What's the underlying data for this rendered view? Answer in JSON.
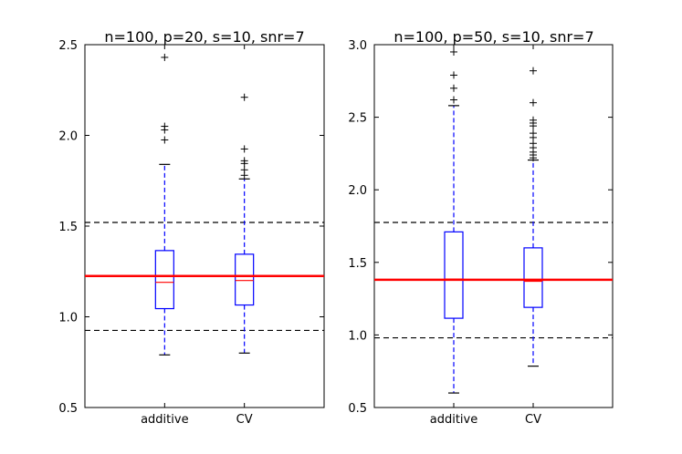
{
  "chart_data": [
    {
      "type": "box",
      "title": "n=100, p=20, s=10, snr=7",
      "xlabel": "",
      "ylabel": "",
      "categories": [
        "additive",
        "CV"
      ],
      "ylim": [
        0.5,
        2.5
      ],
      "yticks": [
        0.5,
        1.0,
        1.5,
        2.0,
        2.5
      ],
      "ytick_labels": [
        "0.5",
        "1.0",
        "1.5",
        "2.0",
        "2.5"
      ],
      "grid": false,
      "boxes": [
        {
          "name": "additive",
          "whisker_low": 0.79,
          "q1": 1.045,
          "median": 1.19,
          "q3": 1.365,
          "whisker_high": 1.84,
          "outliers": [
            1.975,
            2.03,
            2.05,
            2.43
          ]
        },
        {
          "name": "CV",
          "whisker_low": 0.8,
          "q1": 1.065,
          "median": 1.2,
          "q3": 1.345,
          "whisker_high": 1.76,
          "outliers": [
            1.78,
            1.81,
            1.845,
            1.86,
            1.925,
            2.21
          ]
        }
      ],
      "reference_line": 1.225,
      "band_lines": [
        0.925,
        1.52
      ]
    },
    {
      "type": "box",
      "title": "n=100, p=50, s=10, snr=7",
      "xlabel": "",
      "ylabel": "",
      "categories": [
        "additive",
        "CV"
      ],
      "ylim": [
        0.5,
        3.0
      ],
      "yticks": [
        0.5,
        1.0,
        1.5,
        2.0,
        2.5,
        3.0
      ],
      "ytick_labels": [
        "0.5",
        "1.0",
        "1.5",
        "2.0",
        "2.5",
        "3.0"
      ],
      "grid": false,
      "boxes": [
        {
          "name": "additive",
          "whisker_low": 0.6,
          "q1": 1.115,
          "median": 1.385,
          "q3": 1.71,
          "whisker_high": 2.58,
          "outliers": [
            2.62,
            2.7,
            2.79,
            2.95
          ]
        },
        {
          "name": "CV",
          "whisker_low": 0.785,
          "q1": 1.19,
          "median": 1.37,
          "q3": 1.6,
          "whisker_high": 2.205,
          "outliers": [
            2.22,
            2.24,
            2.26,
            2.29,
            2.32,
            2.36,
            2.39,
            2.44,
            2.46,
            2.48,
            2.6,
            2.82
          ]
        }
      ],
      "reference_line": 1.38,
      "band_lines": [
        0.98,
        1.775
      ]
    }
  ],
  "colors": {
    "box": "#0000ff",
    "median": "#ff0000",
    "reference_line": "#ff0000",
    "band_lines": "#000000",
    "outliers": "#000000",
    "axes": "#000000"
  }
}
